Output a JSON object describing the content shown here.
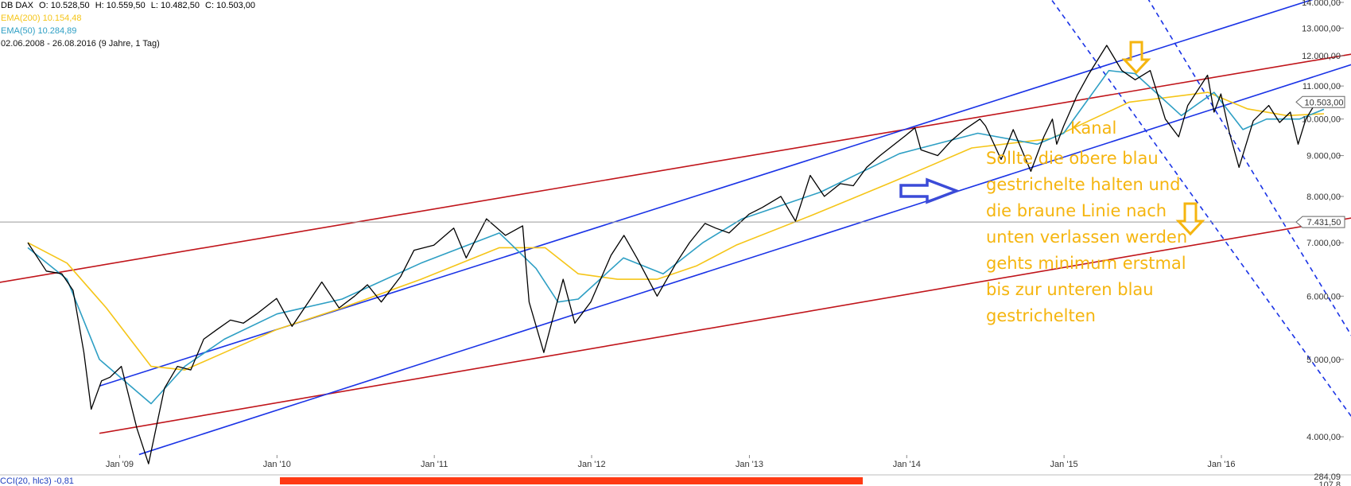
{
  "header": {
    "symbol": "DB DAX",
    "open": "O: 10.528,50",
    "high": "H: 10.559,50",
    "low": "L: 10.482,50",
    "close": "C: 10.503,00",
    "ema200": "EMA(200)  10.154,48",
    "ema50": "EMA(50)  10.284,89",
    "range": "02.06.2008 - 26.08.2016 (9 Jahre, 1 Tag)"
  },
  "footer": {
    "indicator": "CCI(20, hlc3)  -0,81"
  },
  "annotation": {
    "title": "Kanal",
    "lines": [
      "Sollte die obere blau",
      "gestrichelte halten und",
      "die braune Linie nach",
      "unten verlassen werden",
      "gehts minimum erstmal",
      "bis zur unteren blau",
      "gestrichelten"
    ]
  },
  "colors": {
    "price": "#000000",
    "ema200": "#f5c518",
    "ema50": "#2e9fc4",
    "channel_red": "#c0141a",
    "channel_blue": "#1a33e6",
    "annotation": "#f5b50f",
    "arrow_blue": "#3b4bd8",
    "price_marker_border": "#666666"
  },
  "chart_data": {
    "type": "line",
    "title": "DB DAX",
    "y_scale": "log",
    "ylim": [
      3600,
      14000
    ],
    "xlim": [
      "2008-06-02",
      "2016-08-26"
    ],
    "x_ticks": [
      "Jan '09",
      "Jan '10",
      "Jan '11",
      "Jan '12",
      "Jan '13",
      "Jan '14",
      "Jan '15",
      "Jan '16"
    ],
    "y_ticks": [
      "4.000,00",
      "5.000,00",
      "6.000,00",
      "7.000,00",
      "8.000,00",
      "9.000,00",
      "10.000,00",
      "11.000,00",
      "12.000,00",
      "13.000,00",
      "14.000,00"
    ],
    "price_markers": [
      {
        "label": "10.503,00",
        "value": 10503
      },
      {
        "label": "7.431,50",
        "value": 7431.5
      }
    ],
    "bottom_panel_ticks": [
      "284,09",
      "107,8"
    ],
    "series": [
      {
        "name": "DB DAX",
        "key": "price",
        "x": [
          "2008-06-02",
          "2008-07-15",
          "2008-08-20",
          "2008-09-15",
          "2008-10-10",
          "2008-10-27",
          "2008-11-20",
          "2008-12-10",
          "2009-01-05",
          "2009-02-10",
          "2009-03-09",
          "2009-04-15",
          "2009-05-15",
          "2009-06-15",
          "2009-07-15",
          "2009-08-15",
          "2009-09-15",
          "2009-10-15",
          "2009-11-15",
          "2009-12-31",
          "2010-02-05",
          "2010-03-15",
          "2010-04-15",
          "2010-05-25",
          "2010-06-30",
          "2010-07-30",
          "2010-08-31",
          "2010-10-15",
          "2010-11-15",
          "2010-12-31",
          "2011-02-15",
          "2011-03-16",
          "2011-05-02",
          "2011-06-15",
          "2011-07-25",
          "2011-08-09",
          "2011-09-12",
          "2011-10-27",
          "2011-11-23",
          "2011-12-30",
          "2012-02-15",
          "2012-03-16",
          "2012-04-15",
          "2012-06-01",
          "2012-07-15",
          "2012-08-15",
          "2012-09-20",
          "2012-10-15",
          "2012-11-15",
          "2012-12-31",
          "2013-01-31",
          "2013-03-15",
          "2013-04-18",
          "2013-05-22",
          "2013-06-24",
          "2013-07-31",
          "2013-08-30",
          "2013-09-30",
          "2013-10-31",
          "2013-12-31",
          "2014-01-20",
          "2014-02-03",
          "2014-03-14",
          "2014-04-15",
          "2014-05-15",
          "2014-06-20",
          "2014-07-03",
          "2014-08-08",
          "2014-09-05",
          "2014-10-16",
          "2014-11-15",
          "2014-12-05",
          "2014-12-15",
          "2014-12-31",
          "2015-01-31",
          "2015-02-28",
          "2015-04-10",
          "2015-05-15",
          "2015-06-15",
          "2015-07-20",
          "2015-08-24",
          "2015-09-24",
          "2015-10-15",
          "2015-11-30",
          "2015-12-15",
          "2015-12-31",
          "2016-01-20",
          "2016-02-11",
          "2016-03-15",
          "2016-04-20",
          "2016-05-15",
          "2016-06-09",
          "2016-06-27",
          "2016-07-15",
          "2016-08-15",
          "2016-08-26"
        ],
        "y": [
          7000,
          6450,
          6400,
          6100,
          5100,
          4330,
          4700,
          4750,
          4900,
          4100,
          3700,
          4600,
          4900,
          4850,
          5300,
          5450,
          5600,
          5550,
          5700,
          5960,
          5500,
          5900,
          6250,
          5800,
          6000,
          6200,
          5900,
          6350,
          6850,
          6950,
          7300,
          6700,
          7500,
          7150,
          7350,
          5900,
          5100,
          6300,
          5550,
          5900,
          6750,
          7150,
          6700,
          6000,
          6600,
          7000,
          7400,
          7300,
          7200,
          7600,
          7750,
          8000,
          7450,
          8500,
          8000,
          8300,
          8250,
          8700,
          9000,
          9550,
          9750,
          9150,
          9000,
          9400,
          9700,
          10000,
          9800,
          8900,
          9700,
          8600,
          9500,
          10000,
          9300,
          9800,
          10700,
          11400,
          12370,
          11500,
          11200,
          11500,
          10000,
          9500,
          10400,
          11350,
          10200,
          10750,
          9600,
          8700,
          9950,
          10400,
          9900,
          10200,
          9300,
          10000,
          10650,
          10503
        ]
      },
      {
        "name": "EMA(200)",
        "key": "ema200",
        "x": [
          "2008-06-02",
          "2008-09-01",
          "2008-12-01",
          "2009-03-15",
          "2009-06-01",
          "2009-09-01",
          "2010-01-01",
          "2010-06-01",
          "2010-12-01",
          "2011-06-01",
          "2011-09-15",
          "2011-12-01",
          "2012-03-01",
          "2012-06-01",
          "2012-09-01",
          "2012-12-01",
          "2013-06-01",
          "2013-12-01",
          "2014-06-01",
          "2014-12-01",
          "2015-06-01",
          "2015-12-01",
          "2016-03-01",
          "2016-06-01",
          "2016-08-26"
        ],
        "y": [
          7000,
          6600,
          5800,
          4900,
          4850,
          5100,
          5450,
          5800,
          6300,
          6900,
          6900,
          6400,
          6300,
          6300,
          6550,
          6950,
          7600,
          8350,
          9200,
          9450,
          10500,
          10800,
          10300,
          10100,
          10154.48
        ]
      },
      {
        "name": "EMA(50)",
        "key": "ema50",
        "x": [
          "2008-06-02",
          "2008-09-01",
          "2008-11-15",
          "2009-03-15",
          "2009-06-01",
          "2009-09-01",
          "2010-01-01",
          "2010-06-01",
          "2010-12-01",
          "2011-06-01",
          "2011-08-25",
          "2011-10-15",
          "2011-12-01",
          "2012-03-15",
          "2012-06-15",
          "2012-09-15",
          "2012-12-15",
          "2013-06-15",
          "2013-12-15",
          "2014-06-15",
          "2014-10-31",
          "2014-12-31",
          "2015-04-15",
          "2015-06-15",
          "2015-09-30",
          "2015-12-15",
          "2016-02-20",
          "2016-04-15",
          "2016-06-30",
          "2016-08-26"
        ],
        "y": [
          6900,
          6300,
          5000,
          4400,
          4900,
          5300,
          5700,
          5950,
          6600,
          7200,
          6500,
          5900,
          5950,
          6700,
          6400,
          7000,
          7500,
          8100,
          9050,
          9600,
          9300,
          9600,
          11500,
          11400,
          10100,
          10800,
          9700,
          10000,
          10000,
          10284.89
        ]
      }
    ],
    "trendlines": [
      {
        "color": "channel_red",
        "style": "solid",
        "x": [
          "2008-01-01",
          "2016-12-31"
        ],
        "y": [
          6130,
          12220
        ]
      },
      {
        "color": "channel_red",
        "style": "solid",
        "x": [
          "2008-11-15",
          "2016-12-31"
        ],
        "y": [
          4040,
          7620
        ]
      },
      {
        "color": "channel_blue",
        "style": "solid",
        "x": [
          "2008-11-15",
          "2016-12-31"
        ],
        "y": [
          4630,
          15000
        ]
      },
      {
        "color": "channel_blue",
        "style": "solid",
        "x": [
          "2009-02-15",
          "2016-12-31"
        ],
        "y": [
          3800,
          12000
        ]
      },
      {
        "color": "channel_blue",
        "style": "dashed",
        "x": [
          "2014-07-15",
          "2016-12-31"
        ],
        "y": [
          18000,
          3800
        ]
      },
      {
        "color": "channel_blue",
        "style": "dashed",
        "x": [
          "2015-05-01",
          "2016-12-31"
        ],
        "y": [
          16500,
          4700
        ]
      }
    ]
  }
}
